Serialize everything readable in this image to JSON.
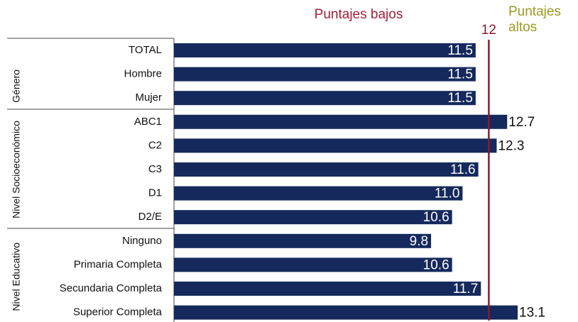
{
  "chart_data": {
    "type": "bar",
    "orientation": "horizontal",
    "annotations": [
      "Puntajes bajos",
      "Puntajes altos"
    ],
    "categories": [
      "TOTAL",
      "Hombre",
      "Mujer",
      "ABC1",
      "C2",
      "C3",
      "D1",
      "D2/E",
      "Ninguno",
      "Primaria Completa",
      "Secundaria Completa",
      "Superior Completa"
    ],
    "values": [
      11.5,
      11.5,
      11.5,
      12.7,
      12.3,
      11.6,
      11.0,
      10.6,
      9.8,
      10.6,
      11.7,
      13.1
    ],
    "value_labels": [
      "11.5",
      "11.5",
      "11.5",
      "12.7",
      "12.3",
      "11.6",
      "11.0",
      "10.6",
      "9.8",
      "10.6",
      "11.7",
      "13.1"
    ],
    "groups": [
      "Género",
      "Nivel Socioeconómico",
      "Nivel Educativo"
    ],
    "reference_value": 12,
    "reference_color": "#8b1a2e",
    "color": "#15295c",
    "xlim": [
      0,
      15.4
    ]
  }
}
